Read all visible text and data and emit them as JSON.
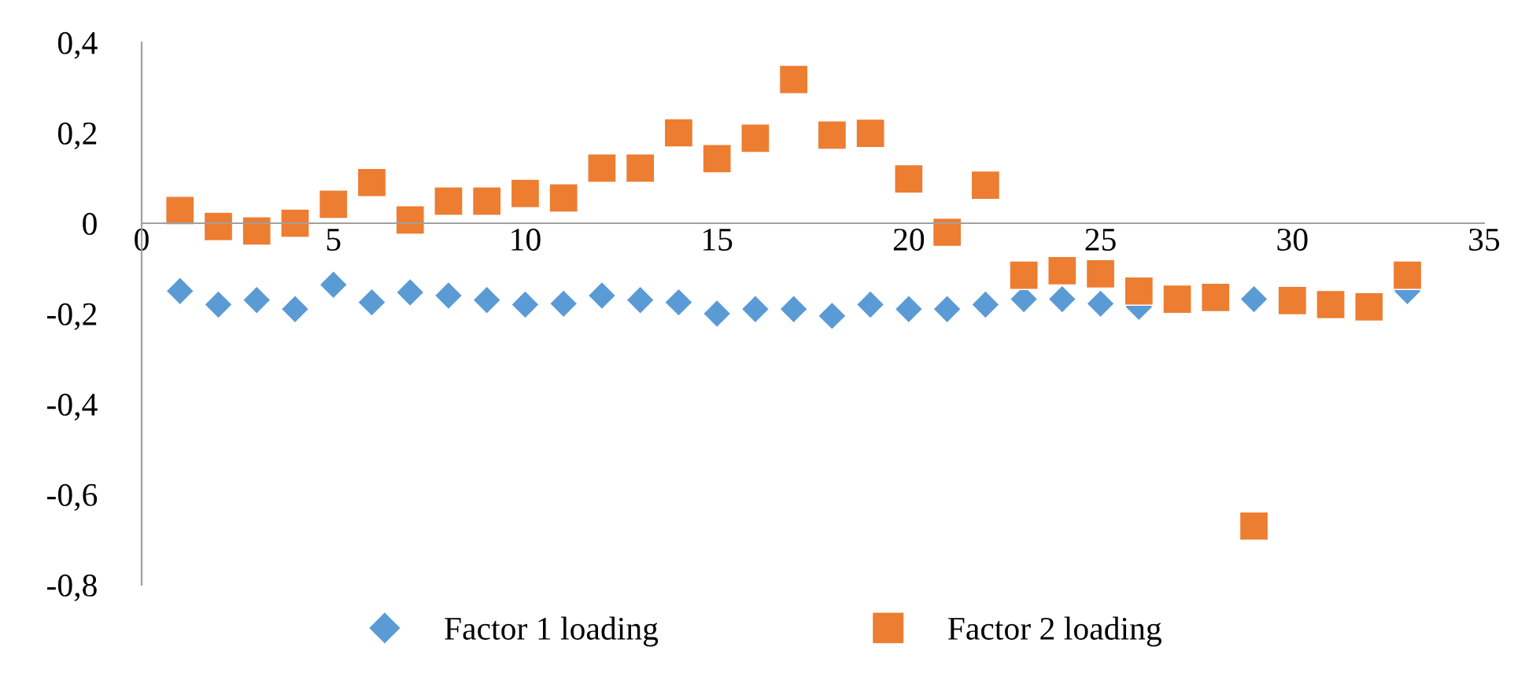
{
  "chart_data": {
    "type": "scatter",
    "x": [
      1,
      2,
      3,
      4,
      5,
      6,
      7,
      8,
      9,
      10,
      11,
      12,
      13,
      14,
      15,
      16,
      17,
      18,
      19,
      20,
      21,
      22,
      23,
      24,
      25,
      26,
      27,
      28,
      29,
      30,
      31,
      32,
      33
    ],
    "series": [
      {
        "name": "Factor 1 loading",
        "color": "#5b9bd5",
        "marker": "diamond",
        "values": [
          -0.15,
          -0.18,
          -0.17,
          -0.19,
          -0.136,
          -0.175,
          -0.153,
          -0.16,
          -0.17,
          -0.18,
          -0.178,
          -0.16,
          -0.17,
          -0.175,
          -0.2,
          -0.19,
          -0.19,
          -0.205,
          -0.18,
          -0.19,
          -0.19,
          -0.18,
          -0.168,
          -0.168,
          -0.178,
          -0.185,
          null,
          null,
          -0.168,
          null,
          null,
          null,
          -0.15
        ]
      },
      {
        "name": "Factor 2 loading",
        "color": "#ed7d31",
        "marker": "square",
        "values": [
          0.028,
          -0.007,
          -0.017,
          0.0,
          0.042,
          0.09,
          0.007,
          0.049,
          0.049,
          0.066,
          0.056,
          0.122,
          0.122,
          0.2,
          0.143,
          0.188,
          0.318,
          0.195,
          0.199,
          0.098,
          -0.02,
          0.084,
          -0.115,
          -0.105,
          -0.112,
          -0.15,
          -0.168,
          -0.164,
          -0.67,
          -0.171,
          -0.18,
          -0.185,
          -0.115
        ]
      }
    ],
    "xlim": [
      0,
      35
    ],
    "xticks": [
      0,
      5,
      10,
      15,
      20,
      25,
      30,
      35
    ],
    "ylim": [
      -0.8,
      0.4
    ],
    "yticks": [
      {
        "value": -0.8,
        "label": "-0,8"
      },
      {
        "value": -0.6,
        "label": "-0,6"
      },
      {
        "value": -0.4,
        "label": "-0,4"
      },
      {
        "value": -0.2,
        "label": "-0,2"
      },
      {
        "value": 0,
        "label": "0"
      },
      {
        "value": 0.2,
        "label": "0,2"
      },
      {
        "value": 0.4,
        "label": "0,4"
      }
    ],
    "grid": false,
    "legend": "bottom"
  }
}
